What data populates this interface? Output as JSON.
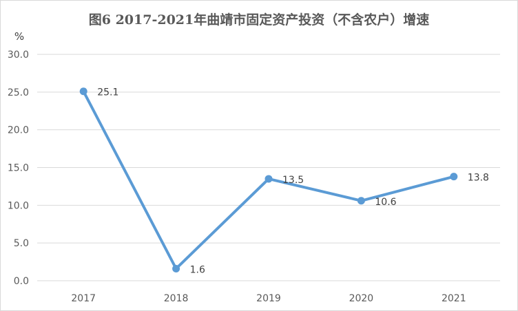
{
  "chart_data": {
    "type": "line",
    "title": "图6   2017-2021年曲靖市固定资产投资（不含农户）增速",
    "ylabel": "%",
    "xlabel": "",
    "categories": [
      "2017",
      "2018",
      "2019",
      "2020",
      "2021"
    ],
    "values": [
      25.1,
      1.6,
      13.5,
      10.6,
      13.8
    ],
    "value_labels": [
      "25.1",
      "1.6",
      "13.5",
      "10.6",
      "13.8"
    ],
    "ylim": [
      0,
      30
    ],
    "yticks": [
      "0.0",
      "5.0",
      "10.0",
      "15.0",
      "20.0",
      "25.0",
      "30.0"
    ],
    "grid": true,
    "line_color": "#5b9bd5",
    "grid_color": "#d9d9d9"
  }
}
